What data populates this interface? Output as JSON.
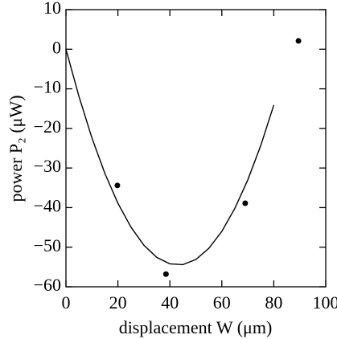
{
  "chart_data": {
    "type": "scatter",
    "x_label": "displacement W (μm)",
    "y_label": "power P₂ (μW)",
    "xlim": [
      0,
      100
    ],
    "xticks": [
      0,
      20,
      40,
      60,
      80,
      100
    ],
    "ylim": [
      -60,
      10
    ],
    "yticks": [
      10,
      0,
      {
        "value": -10,
        "label": "−10"
      },
      {
        "value": -20,
        "label": "−20"
      },
      {
        "value": -30,
        "label": "−30"
      },
      {
        "value": -40,
        "label": "−40"
      },
      {
        "value": -50,
        "label": "−50"
      },
      {
        "value": -60,
        "label": "−60"
      }
    ],
    "points": {
      "color": "#000000",
      "x": [
        19.8,
        38.5,
        69,
        89.5
      ],
      "y": [
        -34.4,
        -56.8,
        -38.9,
        2.1
      ]
    },
    "curve": {
      "color": "#000000",
      "x": [
        0,
        5,
        10,
        15,
        20,
        25,
        30,
        35,
        40,
        45,
        50,
        55,
        60,
        65,
        70,
        75,
        80
      ],
      "y": [
        0.0,
        -11.9,
        -22.4,
        -31.4,
        -38.9,
        -44.9,
        -49.5,
        -52.6,
        -54.2,
        -54.4,
        -53.1,
        -50.3,
        -46.0,
        -40.2,
        -33.0,
        -24.3,
        -14.1
      ]
    }
  }
}
